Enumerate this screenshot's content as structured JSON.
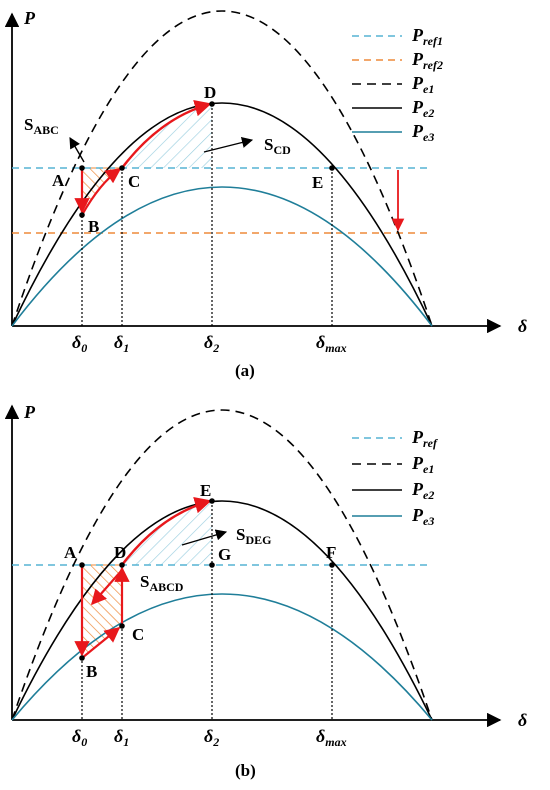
{
  "colors": {
    "teal": "#1f7e99",
    "light_teal": "#56b4d3",
    "orange": "#ee8a3a",
    "red": "#e8181c",
    "black": "#000000"
  },
  "panel_a": {
    "caption": "(a)",
    "y_axis": "P",
    "x_axis": "δ",
    "ticks": [
      {
        "main": "δ",
        "sub": "0"
      },
      {
        "main": "δ",
        "sub": "1"
      },
      {
        "main": "δ",
        "sub": "2"
      },
      {
        "main": "δ",
        "sub": "max"
      }
    ],
    "points": [
      "A",
      "B",
      "C",
      "D",
      "E"
    ],
    "area_abc": {
      "main": "S",
      "sub": "ABC"
    },
    "area_cd": {
      "main": "S",
      "sub": "CD"
    },
    "legend": [
      {
        "main": "P",
        "sub": "ref1",
        "style": "dash-teal"
      },
      {
        "main": "P",
        "sub": "ref2",
        "style": "dash-orange"
      },
      {
        "main": "P",
        "sub": "e1",
        "style": "dash-black"
      },
      {
        "main": "P",
        "sub": "e2",
        "style": "solid-black"
      },
      {
        "main": "P",
        "sub": "e3",
        "style": "solid-teal"
      }
    ]
  },
  "panel_b": {
    "caption": "(b)",
    "y_axis": "P",
    "x_axis": "δ",
    "ticks": [
      {
        "main": "δ",
        "sub": "0"
      },
      {
        "main": "δ",
        "sub": "1"
      },
      {
        "main": "δ",
        "sub": "2"
      },
      {
        "main": "δ",
        "sub": "max"
      }
    ],
    "points": [
      "A",
      "B",
      "C",
      "D",
      "E",
      "F",
      "G"
    ],
    "area_abcd": {
      "main": "S",
      "sub": "ABCD"
    },
    "area_deg": {
      "main": "S",
      "sub": "DEG"
    },
    "legend": [
      {
        "main": "P",
        "sub": "ref",
        "style": "dash-teal"
      },
      {
        "main": "P",
        "sub": "e1",
        "style": "dash-black"
      },
      {
        "main": "P",
        "sub": "e2",
        "style": "solid-black"
      },
      {
        "main": "P",
        "sub": "e3",
        "style": "solid-teal"
      }
    ]
  }
}
